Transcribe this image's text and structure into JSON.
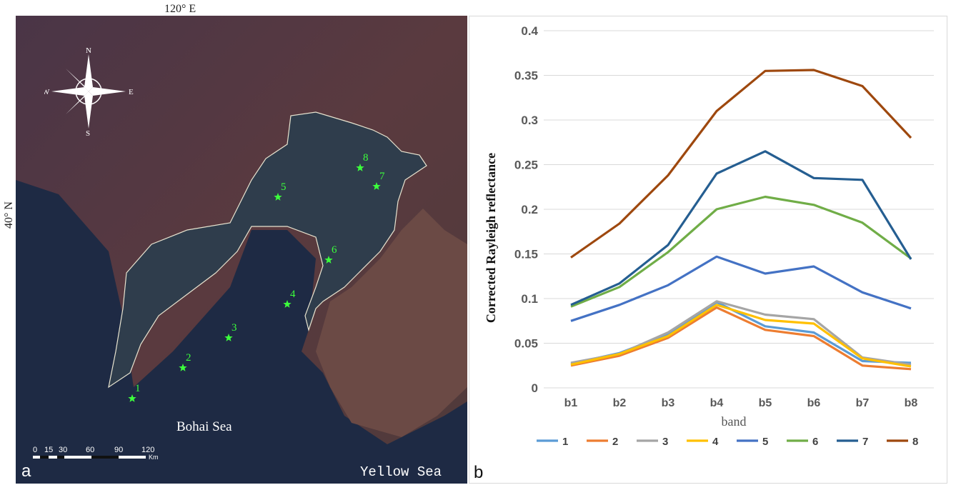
{
  "map": {
    "lon_label": "120° E",
    "lat_label": "40° N",
    "compass": {
      "n": "N",
      "s": "S",
      "e": "E",
      "w": "W"
    },
    "sites": [
      {
        "id": "1"
      },
      {
        "id": "2"
      },
      {
        "id": "3"
      },
      {
        "id": "4"
      },
      {
        "id": "5"
      },
      {
        "id": "6"
      },
      {
        "id": "7"
      },
      {
        "id": "8"
      }
    ],
    "bohai_label": "Bohai Sea",
    "yellow_label": "Yellow Sea",
    "panel_label": "a",
    "scale": {
      "ticks": [
        "0",
        "15",
        "30",
        "60",
        "90",
        "120"
      ],
      "unit": "Km"
    },
    "colors": {
      "land": "#5a3a3f",
      "sea": "#1f2b45",
      "bay": "#2e3b4a",
      "marker": "#3cff3c"
    }
  },
  "chart_data": {
    "type": "line",
    "panel_label": "b",
    "categories": [
      "b1",
      "b2",
      "b3",
      "b4",
      "b5",
      "b6",
      "b7",
      "b8"
    ],
    "xlabel": "band",
    "ylabel": "Corrected Rayleigh reflectance",
    "ylim": [
      0,
      0.4
    ],
    "yticks": [
      "0",
      "0.05",
      "0.1",
      "0.15",
      "0.2",
      "0.25",
      "0.3",
      "0.35",
      "0.4"
    ],
    "grid": true,
    "legend_position": "bottom",
    "series": [
      {
        "name": "1",
        "color": "#5b9bd5",
        "values": [
          0.027,
          0.039,
          0.06,
          0.096,
          0.069,
          0.062,
          0.03,
          0.028
        ]
      },
      {
        "name": "2",
        "color": "#ed7d31",
        "values": [
          0.025,
          0.036,
          0.056,
          0.09,
          0.065,
          0.058,
          0.025,
          0.021
        ]
      },
      {
        "name": "3",
        "color": "#a5a5a5",
        "values": [
          0.028,
          0.038,
          0.062,
          0.097,
          0.082,
          0.077,
          0.034,
          0.026
        ]
      },
      {
        "name": "4",
        "color": "#ffc000",
        "values": [
          0.026,
          0.038,
          0.058,
          0.093,
          0.076,
          0.072,
          0.033,
          0.024
        ]
      },
      {
        "name": "5",
        "color": "#4472c4",
        "values": [
          0.075,
          0.093,
          0.115,
          0.147,
          0.128,
          0.136,
          0.107,
          0.089
        ]
      },
      {
        "name": "6",
        "color": "#70ad47",
        "values": [
          0.091,
          0.113,
          0.152,
          0.2,
          0.214,
          0.205,
          0.185,
          0.145
        ]
      },
      {
        "name": "7",
        "color": "#255e91",
        "values": [
          0.093,
          0.117,
          0.16,
          0.24,
          0.265,
          0.235,
          0.233,
          0.144
        ]
      },
      {
        "name": "8",
        "color": "#9e480e",
        "values": [
          0.146,
          0.184,
          0.238,
          0.31,
          0.355,
          0.356,
          0.338,
          0.28
        ]
      }
    ]
  }
}
